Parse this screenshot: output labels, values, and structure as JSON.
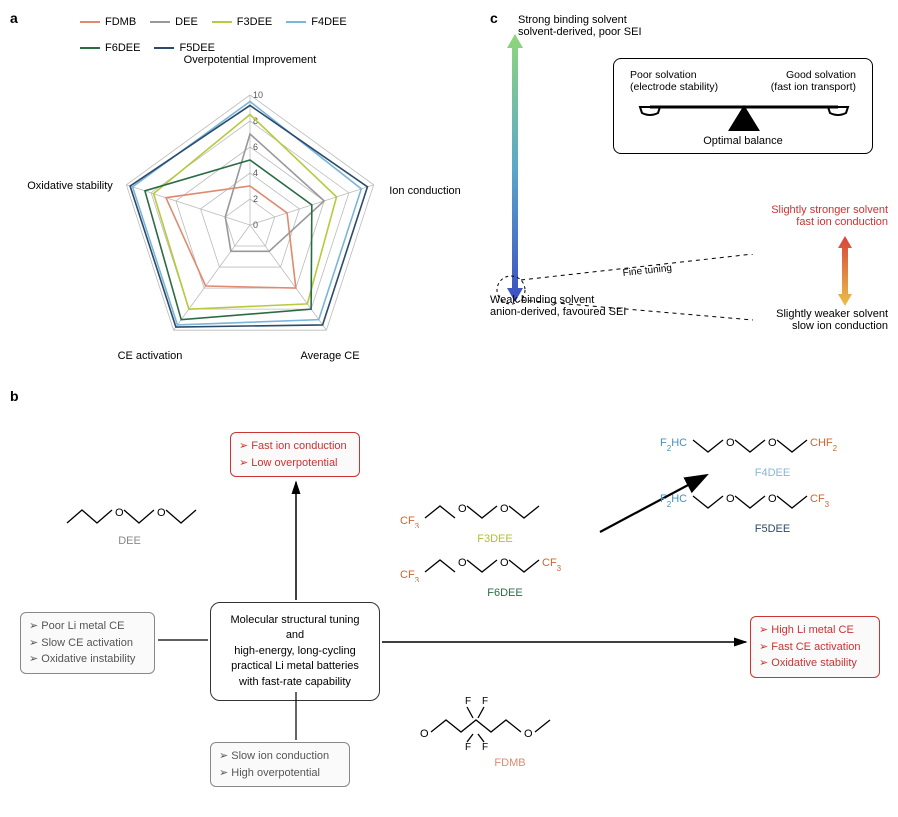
{
  "panels": {
    "a": "a",
    "b": "b",
    "c": "c"
  },
  "radar": {
    "axes": [
      "Overpotential Improvement",
      "Ion conduction",
      "Average CE",
      "CE activation",
      "Oxidative stability"
    ],
    "rings": [
      0,
      2,
      4,
      6,
      8,
      10
    ],
    "max": 10,
    "series": [
      {
        "name": "FDMB",
        "color": "#e08a6e",
        "values": [
          3.0,
          3.0,
          6.0,
          5.8,
          6.8
        ]
      },
      {
        "name": "DEE",
        "color": "#999999",
        "values": [
          7.0,
          6.0,
          2.5,
          2.5,
          2.0
        ]
      },
      {
        "name": "F3DEE",
        "color": "#b8c93e",
        "values": [
          8.5,
          7.0,
          7.5,
          8.0,
          7.8
        ]
      },
      {
        "name": "F4DEE",
        "color": "#79b6d9",
        "values": [
          9.5,
          9.0,
          9.0,
          9.5,
          9.5
        ]
      },
      {
        "name": "F6DEE",
        "color": "#2b6b44",
        "values": [
          5.0,
          5.0,
          8.0,
          9.0,
          8.5
        ]
      },
      {
        "name": "F5DEE",
        "color": "#2c4a6b",
        "values": [
          9.2,
          9.5,
          9.5,
          9.7,
          9.7
        ]
      }
    ]
  },
  "panel_c": {
    "top_label": "Strong binding solvent\nsolvent-derived, poor SEI",
    "bottom_label": "Weak binding solvent\nanion-derived, favoured SEI",
    "balance_left": "Poor solvation\n(electrode stability)",
    "balance_right": "Good solvation\n(fast ion transport)",
    "balance_caption": "Optimal balance",
    "fine_tuning": "Fine tuning",
    "ft_top": "Slightly stronger solvent\nfast ion conduction",
    "ft_bottom": "Slightly weaker solvent\nslow ion conduction"
  },
  "panel_b": {
    "left_box": [
      "Poor Li metal CE",
      "Slow CE activation",
      "Oxidative instability"
    ],
    "bottom_box": [
      "Slow ion conduction",
      "High overpotential"
    ],
    "top_box": [
      "Fast ion conduction",
      "Low overpotential"
    ],
    "right_box": [
      "High Li metal CE",
      "Fast CE activation",
      "Oxidative stability"
    ],
    "center": "Molecular structural tuning\nand\nhigh-energy, long-cycling\npractical Li metal batteries\nwith fast-rate capability",
    "mols": {
      "DEE": {
        "color": "#888888"
      },
      "F3DEE": {
        "color": "#b0bf3a"
      },
      "F6DEE": {
        "color": "#2b6b44"
      },
      "FDMB": {
        "color": "#e08a6e"
      },
      "F4DEE": {
        "color": "#86b8d6"
      },
      "F5DEE": {
        "color": "#2c4a6b"
      }
    },
    "groups": {
      "CF3": {
        "text": "CF",
        "sub": "3",
        "color": "#cc6633"
      },
      "CHF2": {
        "text": "CHF",
        "sub": "2",
        "color": "#cc6633"
      },
      "F2HC": {
        "text": "F",
        "sub": "2",
        "tail": "HC",
        "color": "#4a90b8"
      }
    }
  }
}
